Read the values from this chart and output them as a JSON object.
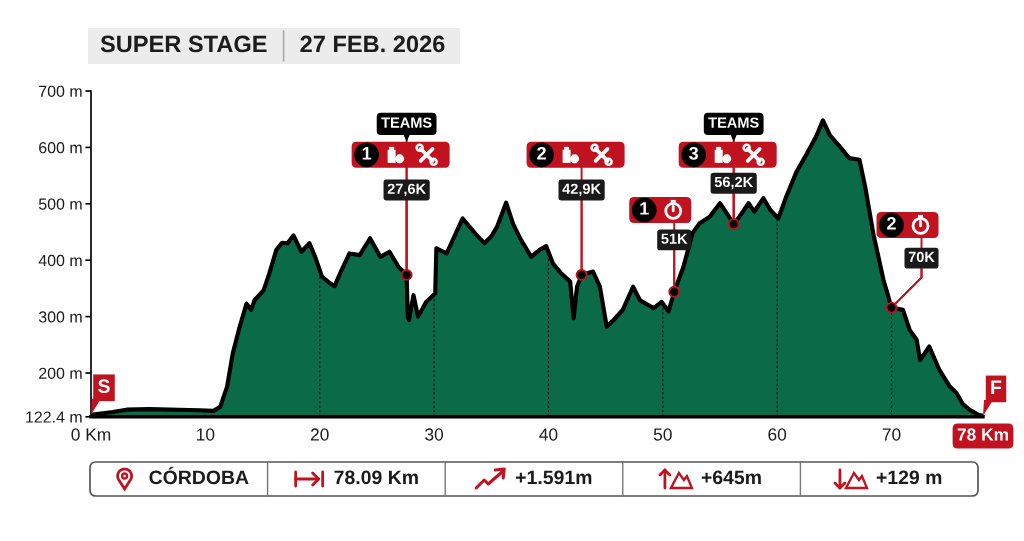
{
  "chart_data": {
    "type": "area",
    "title": "SUPER STAGE",
    "subtitle": "27 FEB. 2026",
    "color": "#0b6b48",
    "x": [
      0.0,
      1.9,
      3.1,
      5.1,
      9.5,
      10.7,
      11.3,
      11.9,
      12.4,
      13.0,
      13.6,
      14.0,
      14.3,
      15.1,
      15.6,
      16.2,
      16.7,
      17.2,
      17.7,
      18.4,
      19.1,
      19.6,
      20.2,
      20.9,
      21.3,
      21.9,
      22.6,
      23.5,
      24.4,
      25.3,
      26.1,
      26.9,
      27.6,
      27.7,
      27.8,
      28.2,
      28.6,
      29.3,
      30.1,
      30.2,
      31.1,
      32.5,
      33.7,
      34.4,
      35.0,
      35.5,
      36.3,
      36.9,
      37.6,
      38.5,
      39.2,
      39.8,
      40.4,
      41.1,
      41.9,
      42.2,
      42.5,
      42.9,
      43.9,
      44.5,
      45.1,
      45.7,
      46.5,
      47.4,
      48.0,
      49.2,
      49.9,
      50.5,
      51.0,
      51.8,
      52.6,
      53.2,
      54.1,
      55.0,
      55.6,
      56.2,
      56.7,
      57.5,
      58.0,
      58.8,
      59.4,
      60.1,
      60.8,
      61.7,
      62.6,
      63.4,
      64.0,
      64.6,
      65.5,
      66.3,
      67.2,
      67.7,
      68.4,
      69.3,
      70.0,
      71.0,
      71.6,
      72.2,
      72.5,
      73.3,
      74.2,
      75.1,
      75.7,
      76.2,
      76.8,
      77.6,
      78.0
    ],
    "values": [
      126,
      131,
      135,
      136,
      134,
      133,
      140,
      176,
      235,
      282,
      323,
      312,
      329,
      347,
      377,
      418,
      431,
      430,
      444,
      415,
      430,
      406,
      371,
      359,
      354,
      382,
      412,
      409,
      439,
      406,
      415,
      388,
      374,
      300,
      294,
      338,
      300,
      326,
      341,
      421,
      412,
      474,
      445,
      430,
      442,
      459,
      502,
      465,
      436,
      406,
      418,
      425,
      394,
      377,
      362,
      297,
      353,
      374,
      380,
      353,
      282,
      294,
      312,
      353,
      329,
      315,
      326,
      309,
      344,
      388,
      448,
      465,
      477,
      501,
      483,
      464,
      477,
      501,
      486,
      510,
      489,
      474,
      513,
      557,
      589,
      619,
      648,
      622,
      601,
      581,
      578,
      530,
      448,
      365,
      316,
      312,
      276,
      259,
      223,
      247,
      205,
      176,
      164,
      146,
      135,
      126,
      124
    ],
    "xlim": [
      0,
      78
    ],
    "xticks": [
      {
        "value": 0,
        "label": "0 Km"
      },
      10,
      20,
      30,
      40,
      50,
      60,
      70,
      {
        "value": 78,
        "label": "78 Km"
      }
    ],
    "ylim": [
      122.4,
      700
    ],
    "yticks": [
      {
        "value": 122.4,
        "label": "122.4 m"
      },
      {
        "value": 200,
        "label": "200 m"
      },
      {
        "value": 300,
        "label": "300 m"
      },
      {
        "value": 400,
        "label": "400 m"
      },
      {
        "value": 500,
        "label": "500 m"
      },
      {
        "value": 600,
        "label": "600 m"
      },
      {
        "value": 700,
        "label": "700 m"
      }
    ],
    "grid": "x",
    "annotations": [
      {
        "text": "S",
        "x": 0,
        "y": 126
      },
      {
        "text": "27,6K",
        "x": 27.6,
        "y": 374
      },
      {
        "text": "1",
        "x": 27.6,
        "y": 374
      },
      {
        "text": "TEAMS",
        "x": 27.6,
        "y": 374
      },
      {
        "text": "42,9K",
        "x": 42.9,
        "y": 374
      },
      {
        "text": "2",
        "x": 42.9,
        "y": 374
      },
      {
        "text": "51K",
        "x": 51.0,
        "y": 344
      },
      {
        "text": "1",
        "x": 51.0,
        "y": 344
      },
      {
        "text": "56,2K",
        "x": 56.2,
        "y": 464
      },
      {
        "text": "3",
        "x": 56.2,
        "y": 464
      },
      {
        "text": "TEAMS",
        "x": 56.2,
        "y": 464
      },
      {
        "text": "70K",
        "x": 70.0,
        "y": 316
      },
      {
        "text": "2",
        "x": 70.0,
        "y": 316
      },
      {
        "text": "F",
        "x": 78,
        "y": 124
      },
      "CÓRDOBA",
      "78.09 Km",
      "+1.591m",
      "+645m",
      "+129 m"
    ]
  }
}
